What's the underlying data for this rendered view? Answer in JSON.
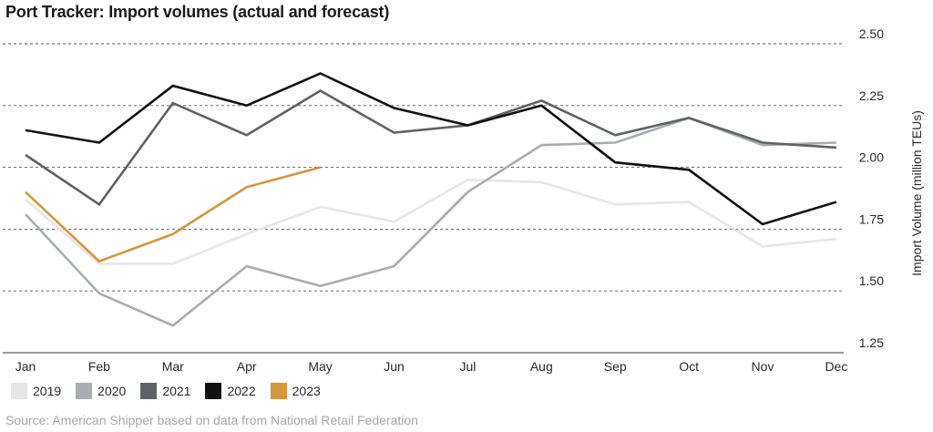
{
  "chart_data": {
    "type": "line",
    "title": "Port Tracker: Import volumes (actual and forecast)",
    "ylabel": "Import Volume (million TEUs)",
    "xlabel": "",
    "categories": [
      "Jan",
      "Feb",
      "Mar",
      "Apr",
      "May",
      "Jun",
      "Jul",
      "Aug",
      "Sep",
      "Oct",
      "Nov",
      "Dec"
    ],
    "ylim": [
      1.25,
      2.5
    ],
    "yticks": [
      "2.50",
      "2.25",
      "2.00",
      "1.75",
      "1.50",
      "1.25"
    ],
    "ytick_values": [
      2.5,
      2.25,
      2.0,
      1.75,
      1.5,
      1.25
    ],
    "grid": "horizontal-dashed",
    "legend_position": "bottom-left",
    "series": [
      {
        "name": "2019",
        "color": "#e6e6e6",
        "values": [
          1.87,
          1.61,
          1.61,
          1.73,
          1.84,
          1.78,
          1.95,
          1.94,
          1.85,
          1.86,
          1.68,
          1.71
        ]
      },
      {
        "name": "2020",
        "color": "#a9adb1",
        "values": [
          1.81,
          1.49,
          1.36,
          1.6,
          1.52,
          1.6,
          1.9,
          2.09,
          2.1,
          2.2,
          2.09,
          2.1
        ]
      },
      {
        "name": "2021",
        "color": "#5f6266",
        "values": [
          2.05,
          1.85,
          2.26,
          2.13,
          2.31,
          2.14,
          2.17,
          2.27,
          2.13,
          2.2,
          2.1,
          2.08
        ]
      },
      {
        "name": "2022",
        "color": "#111111",
        "values": [
          2.15,
          2.1,
          2.33,
          2.25,
          2.38,
          2.24,
          2.17,
          2.25,
          2.02,
          1.99,
          1.77,
          1.86
        ]
      },
      {
        "name": "2023",
        "color": "#d4973a",
        "values": [
          1.9,
          1.62,
          1.73,
          1.92,
          2.0,
          null,
          null,
          null,
          null,
          null,
          null,
          null
        ]
      }
    ],
    "source": "Source: American Shipper based on data from National Retail Federation"
  }
}
